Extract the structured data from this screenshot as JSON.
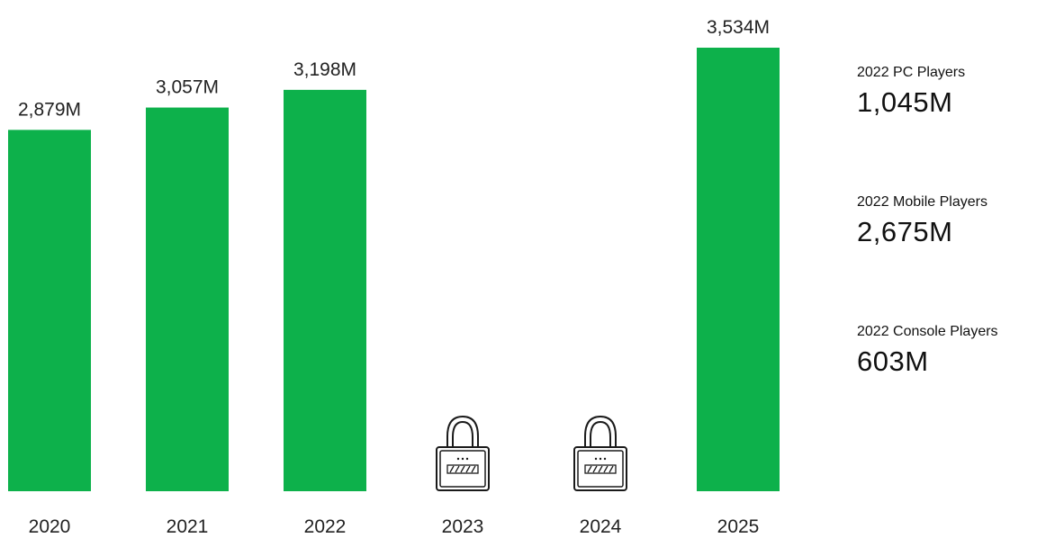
{
  "chart_data": {
    "type": "bar",
    "categories": [
      "2020",
      "2021",
      "2022",
      "2023",
      "2024",
      "2025"
    ],
    "values": [
      2879,
      3057,
      3198,
      null,
      null,
      3534
    ],
    "value_labels": [
      "2,879M",
      "3,057M",
      "3,198M",
      "",
      "",
      "3,534M"
    ],
    "locked": [
      false,
      false,
      false,
      true,
      true,
      false
    ],
    "bar_color": "#0db14b",
    "title": "",
    "xlabel": "",
    "ylabel": "",
    "grid": false
  },
  "stats": [
    {
      "label": "2022 PC Players",
      "value": "1,045M"
    },
    {
      "label": "2022 Mobile Players",
      "value": "2,675M"
    },
    {
      "label": "2022 Console Players",
      "value": "603M"
    }
  ],
  "icons": {
    "locked_bar": "lock-icon"
  }
}
